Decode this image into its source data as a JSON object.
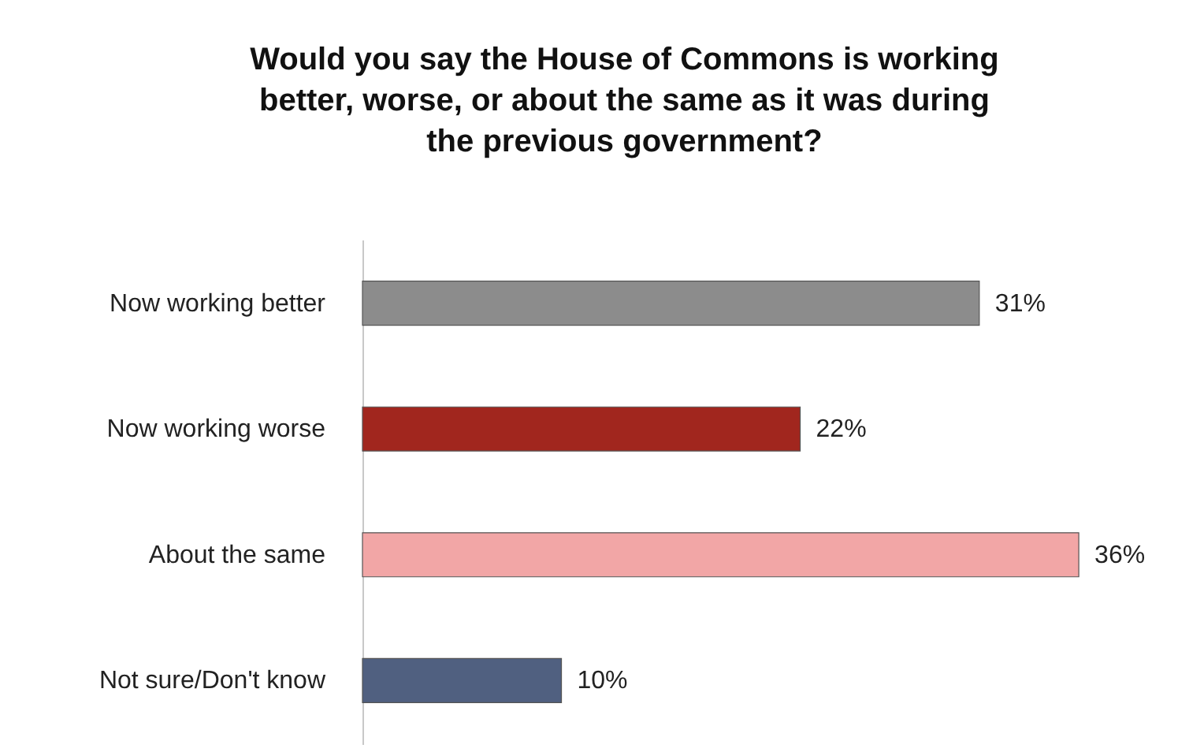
{
  "chart_data": {
    "type": "bar",
    "orientation": "horizontal",
    "title": "Would you say the House of Commons is working better, worse, or about the same as it was during the previous government?",
    "categories": [
      "Now working better",
      "Now working worse",
      "About the same",
      "Not sure/Don't know"
    ],
    "values": [
      31,
      22,
      36,
      10
    ],
    "value_labels": [
      "31%",
      "22%",
      "36%",
      "10%"
    ],
    "colors": [
      "#8c8c8c",
      "#a1261e",
      "#f2a6a6",
      "#506080"
    ]
  }
}
